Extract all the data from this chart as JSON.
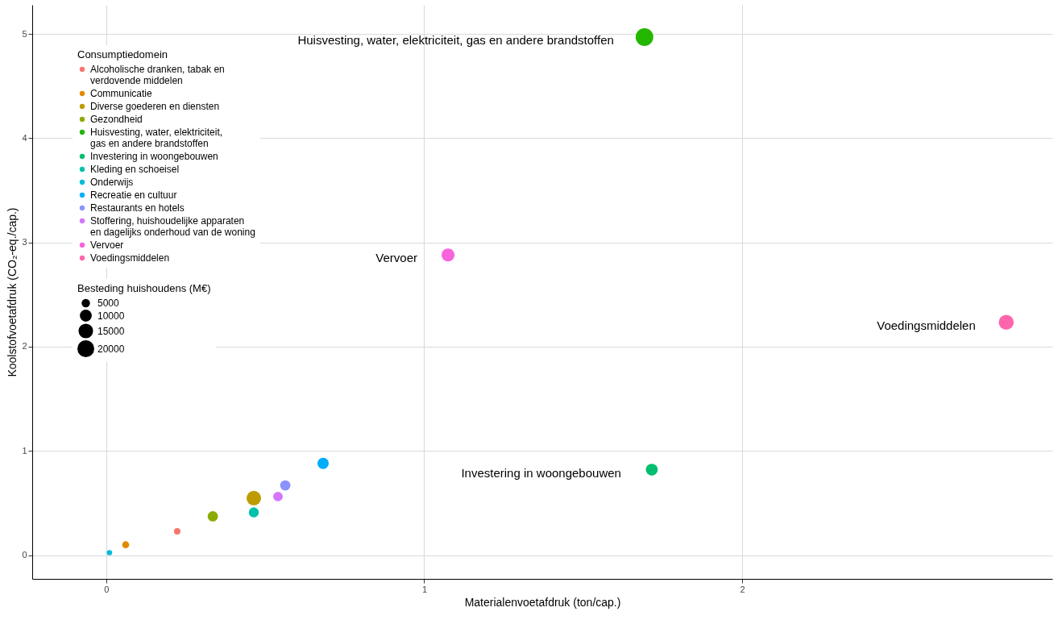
{
  "chart_data": {
    "type": "bubble",
    "xlabel": "Materialenvoetafdruk (ton/cap.)",
    "ylabel": "Koolstofvoetafdruk (CO₂-eq./cap.)",
    "legend_title": "Consumptiedomein",
    "xlim": [
      -0.233,
      2.976
    ],
    "ylim": [
      -0.228,
      5.28
    ],
    "xticks": [
      0,
      1,
      2
    ],
    "yticks": [
      0,
      1,
      2,
      3,
      4,
      5
    ],
    "grid": true,
    "legend": "top left",
    "size_legend": [
      5000,
      10000,
      15000,
      20000
    ],
    "series": [
      {
        "name": "Alcoholische dranken, tabak en verdovende middelen",
        "color": "#F8766D",
        "x": [
          0.223
        ],
        "values": [
          0.228
        ],
        "sizes": [
          3000
        ]
      },
      {
        "name": "Communicatie",
        "color": "#E18A00",
        "x": [
          0.061
        ],
        "values": [
          0.099
        ],
        "sizes": [
          3500
        ]
      },
      {
        "name": "Diverse goederen en diensten",
        "color": "#BE9C00",
        "x": [
          0.464
        ],
        "values": [
          0.547
        ],
        "sizes": [
          15000
        ]
      },
      {
        "name": "Gezondheid",
        "color": "#8CAB00",
        "x": [
          0.335
        ],
        "values": [
          0.372
        ],
        "sizes": [
          7500
        ]
      },
      {
        "name": "Huisvesting, water, elektriciteit, gas en andere brandstoffen",
        "color": "#24B700",
        "x": [
          1.693
        ],
        "values": [
          4.97
        ],
        "sizes": [
          22000
        ]
      },
      {
        "name": "Investering in woongebouwen",
        "color": "#00BE70",
        "x": [
          1.716
        ],
        "values": [
          0.82
        ],
        "sizes": [
          10000
        ]
      },
      {
        "name": "Kleding en schoeisel",
        "color": "#00C1AB",
        "x": [
          0.464
        ],
        "values": [
          0.41
        ],
        "sizes": [
          7000
        ]
      },
      {
        "name": "Onderwijs",
        "color": "#00BBDA",
        "x": [
          0.01
        ],
        "values": [
          0.023
        ],
        "sizes": [
          2000
        ]
      },
      {
        "name": "Recreatie en cultuur",
        "color": "#00ACFC",
        "x": [
          0.682
        ],
        "values": [
          0.88
        ],
        "sizes": [
          9000
        ]
      },
      {
        "name": "Restaurants en hotels",
        "color": "#8B93FF",
        "x": [
          0.563
        ],
        "values": [
          0.669
        ],
        "sizes": [
          7500
        ]
      },
      {
        "name": "Stoffering, huishoudelijke apparaten en dagelijks onderhoud van de woning",
        "color": "#D575FE",
        "x": [
          0.54
        ],
        "values": [
          0.562
        ],
        "sizes": [
          6500
        ]
      },
      {
        "name": "Vervoer",
        "color": "#F962DD",
        "x": [
          1.075
        ],
        "values": [
          2.88
        ],
        "sizes": [
          12000
        ]
      },
      {
        "name": "Voedingsmiddelen",
        "color": "#FF65AC",
        "x": [
          2.831
        ],
        "values": [
          2.234
        ],
        "sizes": [
          16000
        ]
      }
    ],
    "annotations": [
      "Besteding huishoudens (M€)",
      {
        "text": "Huisvesting, water, elektriciteit, gas en andere brandstoffen",
        "x": 1.693,
        "y": 4.97
      },
      {
        "text": "Vervoer",
        "x": 1.075,
        "y": 2.88
      },
      {
        "text": "Voedingsmiddelen",
        "x": 2.831,
        "y": 2.234
      },
      {
        "text": "Investering in woongebouwen",
        "x": 1.716,
        "y": 0.82
      }
    ]
  }
}
